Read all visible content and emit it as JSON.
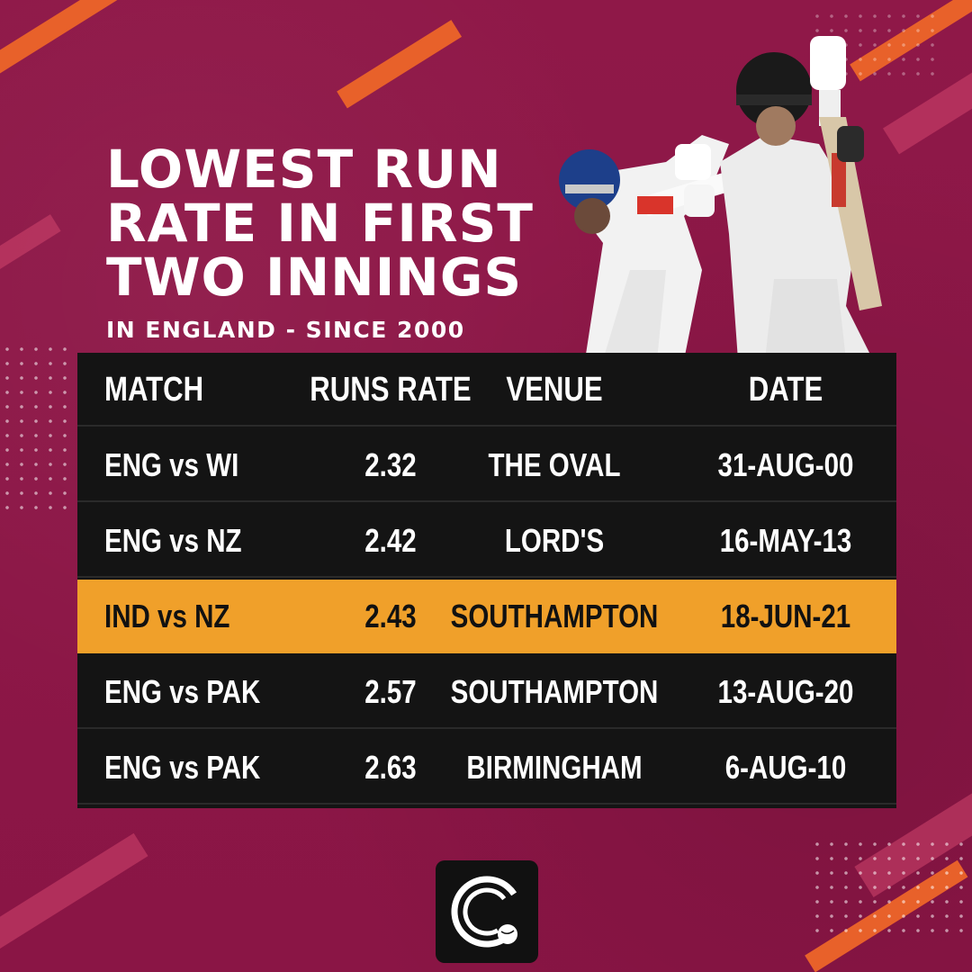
{
  "title": "LOWEST RUN\nRATE IN FIRST\nTWO INNINGS",
  "subtitle": "IN ENGLAND - SINCE 2000",
  "colors": {
    "background": "#8e1747",
    "accent": "#e8612a",
    "highlight": "#f0a02a",
    "table": "#141414"
  },
  "chart_data": {
    "type": "table",
    "columns": [
      "MATCH",
      "RUNS RATE",
      "VENUE",
      "DATE"
    ],
    "rows": [
      {
        "match": "ENG vs WI",
        "run_rate": "2.32",
        "venue": "THE OVAL",
        "date": "31-AUG-00",
        "highlighted": false
      },
      {
        "match": "ENG vs NZ",
        "run_rate": "2.42",
        "venue": "LORD'S",
        "date": "16-MAY-13",
        "highlighted": false
      },
      {
        "match": "IND vs NZ",
        "run_rate": "2.43",
        "venue": "SOUTHAMPTON",
        "date": "18-JUN-21",
        "highlighted": true
      },
      {
        "match": "ENG vs PAK",
        "run_rate": "2.57",
        "venue": "SOUTHAMPTON",
        "date": "13-AUG-20",
        "highlighted": false
      },
      {
        "match": "ENG vs PAK",
        "run_rate": "2.63",
        "venue": "BIRMINGHAM",
        "date": "6-AUG-10",
        "highlighted": false
      }
    ]
  },
  "players_image": "two-batsmen-photo",
  "logo": "cricket-ball-logo-icon"
}
